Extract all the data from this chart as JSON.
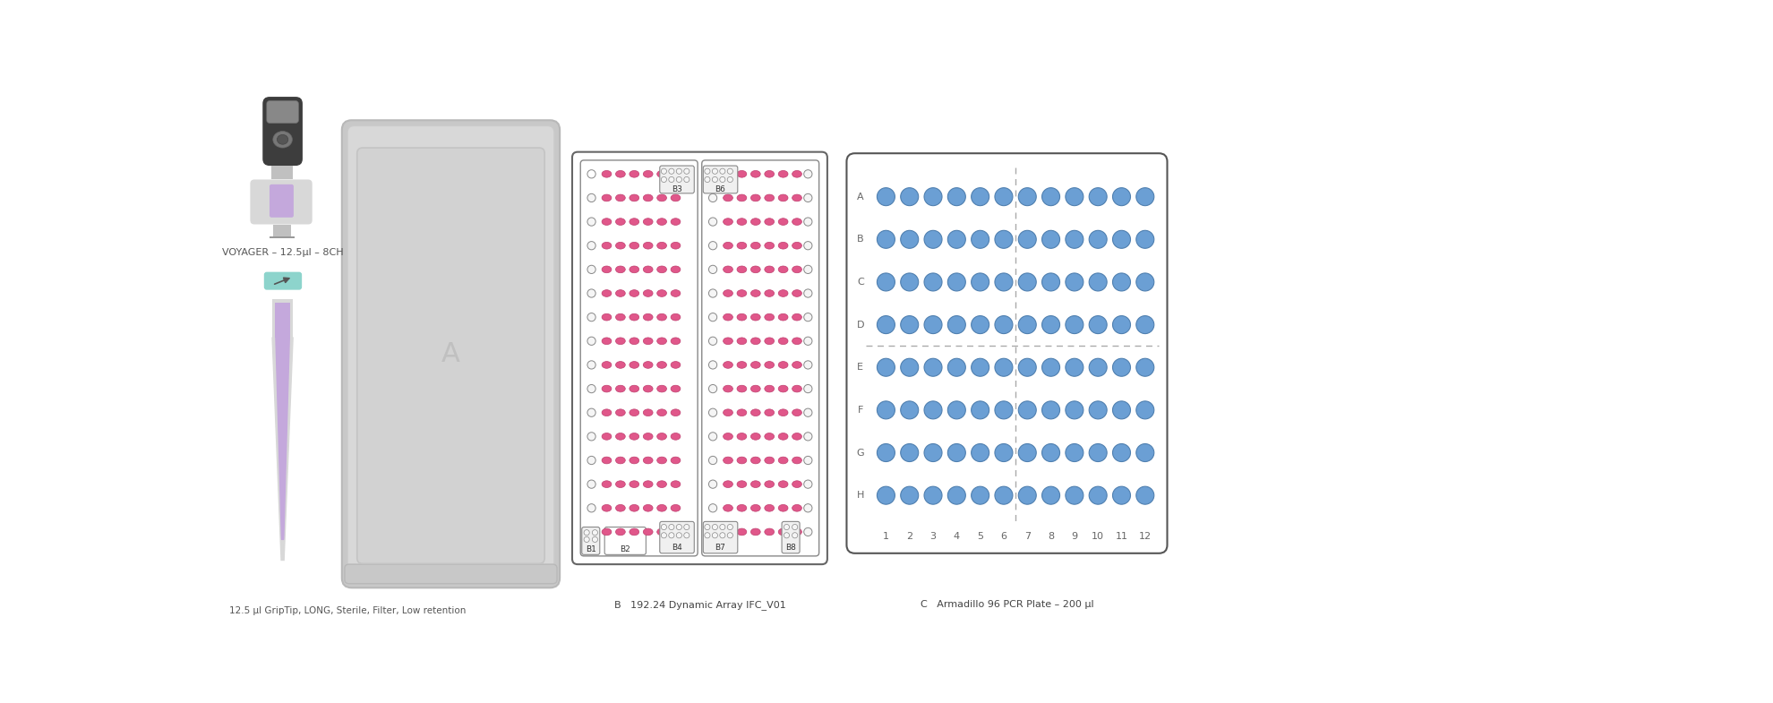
{
  "bg_color": "#ffffff",
  "deck_bg": "#d4d4d4",
  "label_voyager": "VOYAGER – 12.5μl – 8CH",
  "label_tip": "12.5 μl GripTip, LONG, Sterile, Filter, Low retention",
  "label_b": "B   192.24 Dynamic Array IFC_V01",
  "label_c": "C   Armadillo 96 PCR Plate – 200 μl",
  "ifc_pink_color": "#e0578a",
  "ifc_hole_fc": "#f5f5f5",
  "ifc_border_color": "#666666",
  "plate_well_color": "#6b9fd4",
  "plate_border_color": "#555555",
  "voyager_dark": "#3d3d3d",
  "voyager_mid": "#c0c0c0",
  "voyager_light": "#d8d8d8",
  "voyager_purple": "#c4a8dc",
  "tip_purple": "#c4a8dc",
  "tip_light": "#d8d8d8",
  "pencil_bg": "#8dd4cc",
  "slot_a_color": "#c4c4c4"
}
